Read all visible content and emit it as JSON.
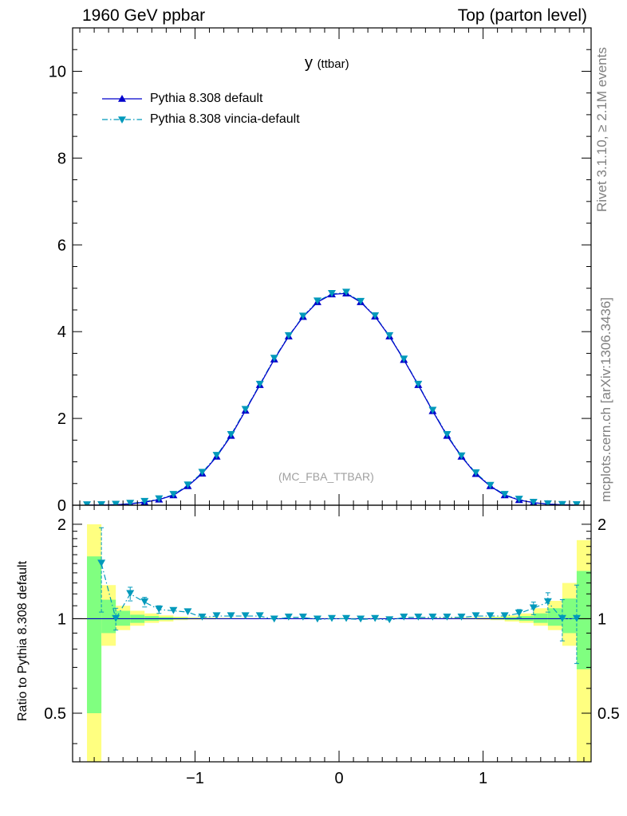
{
  "header": {
    "left": "1960 GeV ppbar",
    "right": "Top (parton level)"
  },
  "side_labels": {
    "rivet": "Rivet 3.1.10, ≥ 2.1M events",
    "source": "mcplots.cern.ch [arXiv:1306.3436]"
  },
  "plot_title": {
    "main": "y",
    "sub": "(ttbar)"
  },
  "analysis_label": "(MC_FBA_TTBAR)",
  "colors": {
    "default_series": "#0000cc",
    "vincia_series": "#0099bb",
    "band_yellow": "#ffff80",
    "band_green": "#80ff80"
  },
  "chart_data": [
    {
      "type": "line",
      "panel": "main",
      "xlim": [
        -1.85,
        1.75
      ],
      "ylim": [
        0,
        11
      ],
      "y_ticks": [
        0,
        2,
        4,
        6,
        8,
        10
      ],
      "y_tick_labels": [
        "0",
        "2",
        "4",
        "6",
        "8",
        "10"
      ],
      "x_ticks": [
        -1,
        0,
        1
      ],
      "x": [
        -1.75,
        -1.65,
        -1.55,
        -1.45,
        -1.35,
        -1.25,
        -1.15,
        -1.05,
        -0.95,
        -0.85,
        -0.75,
        -0.65,
        -0.55,
        -0.45,
        -0.35,
        -0.25,
        -0.15,
        -0.05,
        0.05,
        0.15,
        0.25,
        0.35,
        0.45,
        0.55,
        0.65,
        0.75,
        0.85,
        0.95,
        1.05,
        1.15,
        1.25,
        1.35,
        1.45,
        1.55,
        1.65
      ],
      "series": [
        {
          "name": "Pythia 8.308 default",
          "marker": "triangle-up",
          "line": "solid",
          "values": [
            0.001,
            0.004,
            0.012,
            0.03,
            0.07,
            0.13,
            0.23,
            0.44,
            0.73,
            1.12,
            1.6,
            2.18,
            2.77,
            3.36,
            3.89,
            4.34,
            4.68,
            4.86,
            4.88,
            4.68,
            4.35,
            3.89,
            3.35,
            2.77,
            2.17,
            1.6,
            1.12,
            0.72,
            0.44,
            0.23,
            0.12,
            0.06,
            0.025,
            0.01,
            0.004
          ]
        },
        {
          "name": "Pythia 8.308 vincia-default",
          "marker": "triangle-down",
          "line": "dash-dot",
          "values": [
            0.002,
            0.004,
            0.013,
            0.036,
            0.08,
            0.14,
            0.24,
            0.46,
            0.75,
            1.14,
            1.62,
            2.2,
            2.78,
            3.38,
            3.9,
            4.35,
            4.7,
            4.87,
            4.9,
            4.69,
            4.36,
            3.9,
            3.36,
            2.78,
            2.18,
            1.62,
            1.13,
            0.74,
            0.45,
            0.24,
            0.13,
            0.06,
            0.026,
            0.01,
            0.004
          ]
        }
      ]
    },
    {
      "type": "line",
      "panel": "ratio",
      "ylabel": "Ratio to Pythia 8.308 default",
      "xlim": [
        -1.85,
        1.75
      ],
      "ylim": [
        0.35,
        2.3
      ],
      "y_scale": "log",
      "y_ticks": [
        0.5,
        1,
        2
      ],
      "y_tick_labels": [
        "0.5",
        "1",
        "2"
      ],
      "x_ticks": [
        -1,
        0,
        1
      ],
      "x_tick_labels": [
        "−1",
        "0",
        "1"
      ],
      "bins": [
        -1.75,
        -1.65,
        -1.55,
        -1.45,
        -1.35,
        -1.25,
        -1.15,
        -1.05,
        -0.95,
        -0.85,
        -0.75,
        -0.65,
        -0.55,
        -0.45,
        -0.35,
        -0.25,
        -0.15,
        -0.05,
        0.05,
        0.15,
        0.25,
        0.35,
        0.45,
        0.55,
        0.65,
        0.75,
        0.85,
        0.95,
        1.05,
        1.15,
        1.25,
        1.35,
        1.45,
        1.55,
        1.65,
        1.75
      ],
      "band_yellow_low": [
        0.3,
        0.82,
        0.92,
        0.95,
        0.97,
        0.98,
        0.99,
        0.993,
        0.995,
        0.996,
        0.997,
        0.997,
        0.998,
        0.998,
        0.998,
        0.998,
        0.998,
        0.998,
        0.998,
        0.998,
        0.998,
        0.998,
        0.998,
        0.997,
        0.997,
        0.996,
        0.995,
        0.993,
        0.99,
        0.98,
        0.97,
        0.95,
        0.92,
        0.82,
        0.3
      ],
      "band_yellow_high": [
        2.0,
        1.28,
        1.1,
        1.06,
        1.04,
        1.025,
        1.015,
        1.01,
        1.008,
        1.006,
        1.005,
        1.004,
        1.003,
        1.003,
        1.003,
        1.003,
        1.003,
        1.003,
        1.003,
        1.003,
        1.003,
        1.003,
        1.003,
        1.004,
        1.005,
        1.006,
        1.008,
        1.01,
        1.015,
        1.025,
        1.04,
        1.08,
        1.14,
        1.3,
        1.78
      ],
      "band_green_low": [
        0.5,
        0.9,
        0.95,
        0.97,
        0.985,
        0.99,
        0.995,
        0.997,
        0.998,
        0.998,
        0.999,
        0.999,
        0.999,
        0.999,
        0.999,
        0.999,
        0.999,
        0.999,
        0.999,
        0.999,
        0.999,
        0.999,
        0.999,
        0.999,
        0.999,
        0.998,
        0.998,
        0.997,
        0.995,
        0.99,
        0.985,
        0.97,
        0.95,
        0.9,
        0.69
      ],
      "band_green_high": [
        1.58,
        1.15,
        1.06,
        1.03,
        1.02,
        1.012,
        1.008,
        1.005,
        1.004,
        1.003,
        1.002,
        1.002,
        1.002,
        1.002,
        1.002,
        1.002,
        1.002,
        1.002,
        1.002,
        1.002,
        1.002,
        1.002,
        1.002,
        1.002,
        1.002,
        1.003,
        1.004,
        1.005,
        1.008,
        1.012,
        1.02,
        1.04,
        1.08,
        1.16,
        1.42
      ],
      "series": [
        {
          "name": "Pythia 8.308 vincia-default",
          "x": [
            -1.65,
            -1.55,
            -1.45,
            -1.35,
            -1.25,
            -1.15,
            -1.05,
            -0.95,
            -0.85,
            -0.75,
            -0.65,
            -0.55,
            -0.45,
            -0.35,
            -0.25,
            -0.15,
            -0.05,
            0.05,
            0.15,
            0.25,
            0.35,
            0.45,
            0.55,
            0.65,
            0.75,
            0.85,
            0.95,
            1.05,
            1.15,
            1.25,
            1.35,
            1.45,
            1.55,
            1.65
          ],
          "values": [
            1.5,
            1.0,
            1.2,
            1.13,
            1.07,
            1.06,
            1.05,
            1.01,
            1.02,
            1.02,
            1.02,
            1.02,
            0.995,
            1.01,
            1.01,
            0.995,
            1.0,
            1.0,
            0.995,
            1.0,
            0.99,
            1.01,
            1.01,
            1.01,
            1.01,
            1.01,
            1.02,
            1.02,
            1.02,
            1.04,
            1.08,
            1.13,
            1.0,
            1.0
          ],
          "err": [
            0.45,
            0.08,
            0.06,
            0.04,
            0.03,
            0.02,
            0.015,
            0.01,
            0.008,
            0.006,
            0.005,
            0.005,
            0.004,
            0.004,
            0.004,
            0.004,
            0.004,
            0.004,
            0.004,
            0.004,
            0.004,
            0.004,
            0.005,
            0.005,
            0.006,
            0.008,
            0.01,
            0.015,
            0.02,
            0.03,
            0.05,
            0.08,
            0.15,
            0.28
          ]
        }
      ]
    }
  ]
}
